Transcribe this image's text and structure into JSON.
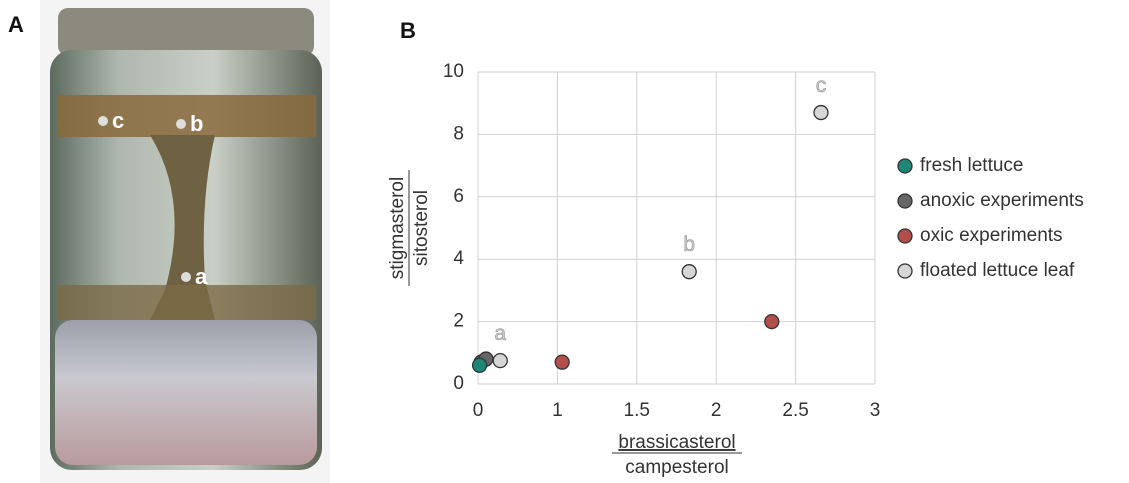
{
  "panel_labels": [
    "A",
    "B"
  ],
  "photo": {
    "point_labels": [
      "c",
      "b",
      "a"
    ]
  },
  "chart_data": {
    "type": "scatter",
    "x_label": {
      "numerator": "brassicasterol",
      "denominator": "campesterol"
    },
    "y_label": {
      "numerator": "stigmasterol",
      "denominator": "sitosterol"
    },
    "xlim": [
      0.5,
      3
    ],
    "xticks": [
      {
        "value": 0.5,
        "label": "0"
      },
      1,
      1.5,
      2,
      2.5,
      3
    ],
    "ylim": [
      0,
      10
    ],
    "yticks": [
      0,
      2,
      4,
      6,
      8,
      10
    ],
    "grid": true,
    "legend": "right",
    "annotations": [
      "a",
      "b",
      "c"
    ],
    "series": [
      {
        "name": "fresh lettuce",
        "color": "#1d8677",
        "x": [
          0.51
        ],
        "values": [
          0.6
        ]
      },
      {
        "name": "anoxic experiments",
        "color": "#666666",
        "x": [
          0.52,
          0.55
        ],
        "values": [
          0.7,
          0.8
        ]
      },
      {
        "name": "oxic experiments",
        "color": "#b24f4b",
        "x": [
          1.03,
          2.35
        ],
        "values": [
          0.7,
          2.0
        ]
      },
      {
        "name": "floated lettuce leaf",
        "color": "#d6d6d6",
        "x": [
          0.64,
          1.83,
          2.66
        ],
        "values": [
          0.75,
          3.6,
          8.7
        ]
      }
    ]
  }
}
